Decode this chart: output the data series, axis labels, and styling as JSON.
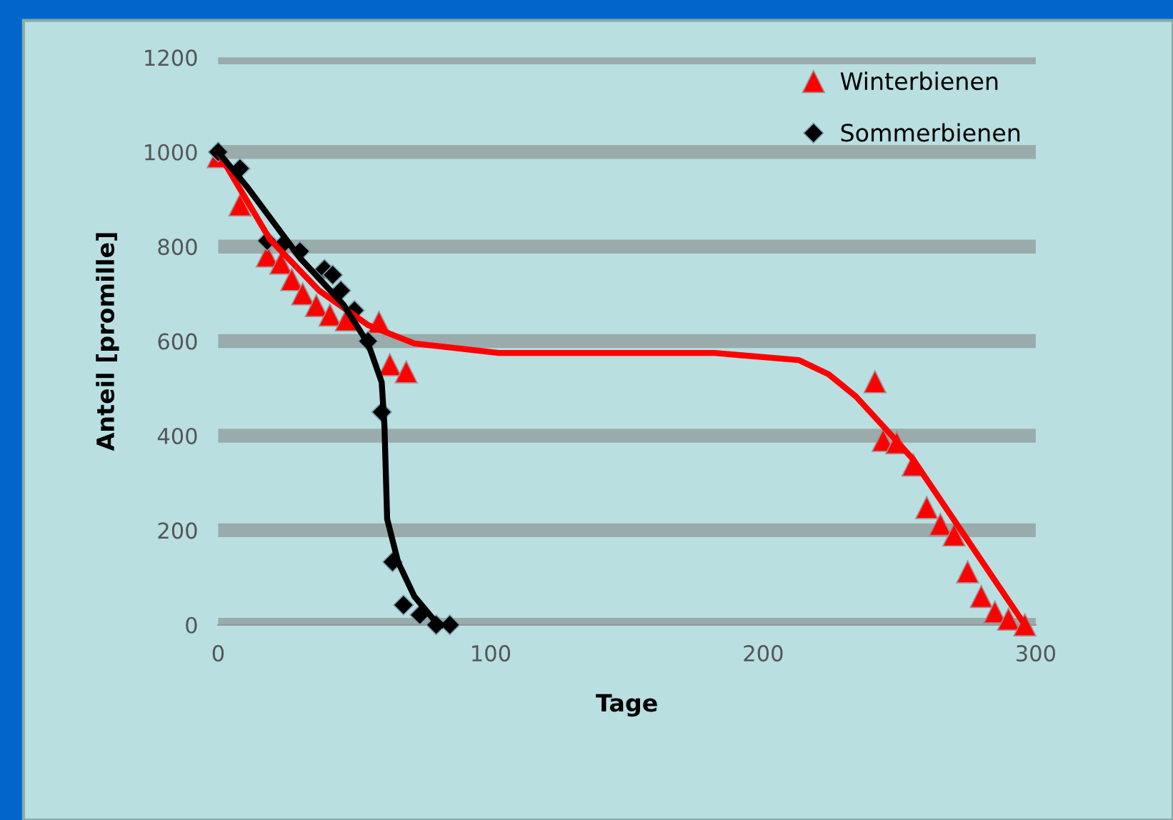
{
  "chart_data": {
    "type": "scatter",
    "xlabel": "Tage",
    "ylabel": "Anteil [promille]",
    "xlim": [
      0,
      300
    ],
    "xticks": [
      0,
      100,
      200,
      300
    ],
    "ylim": [
      0,
      1200
    ],
    "yticks": [
      0,
      200,
      400,
      600,
      800,
      1000,
      1200
    ],
    "grid": "y",
    "legend": "top right",
    "series": [
      {
        "name": "Winterbienen",
        "marker": "triangle",
        "color": "#ff0000",
        "x": [
          0,
          8,
          18,
          23,
          27,
          31,
          36,
          41,
          47,
          59,
          63,
          69,
          241,
          244,
          249,
          255,
          260,
          265,
          270,
          275,
          280,
          285,
          290,
          296
        ],
        "values": [
          990,
          888,
          780,
          765,
          730,
          700,
          675,
          655,
          645,
          640,
          550,
          535,
          514,
          390,
          385,
          338,
          248,
          212,
          190,
          112,
          60,
          27,
          12,
          0
        ]
      },
      {
        "name": "Sommerbienen",
        "marker": "diamond",
        "color": "#000000",
        "x": [
          0,
          8,
          18,
          24,
          30,
          39,
          42,
          45,
          50,
          55,
          60,
          64,
          68,
          74,
          80,
          85
        ],
        "values": [
          1000,
          965,
          812,
          806,
          790,
          752,
          740,
          707,
          665,
          600,
          450,
          133,
          42,
          21,
          0,
          0
        ]
      },
      {
        "type": "line",
        "marker": "none",
        "color": "#ff0000",
        "x": [
          0,
          2,
          19,
          37,
          55,
          72,
          103,
          182,
          213,
          224,
          234,
          245,
          255,
          296
        ],
        "values": [
          1000,
          980,
          815,
          707,
          634,
          595,
          575,
          575,
          560,
          530,
          483,
          414,
          350,
          0
        ]
      },
      {
        "type": "line",
        "marker": "none",
        "color": "#000000",
        "x": [
          0,
          10.5,
          30,
          46,
          55,
          60,
          61,
          62,
          66,
          72,
          79,
          82
        ],
        "values": [
          1000,
          927,
          776,
          677,
          595,
          513,
          423,
          224,
          133,
          60,
          12,
          0
        ]
      }
    ]
  }
}
